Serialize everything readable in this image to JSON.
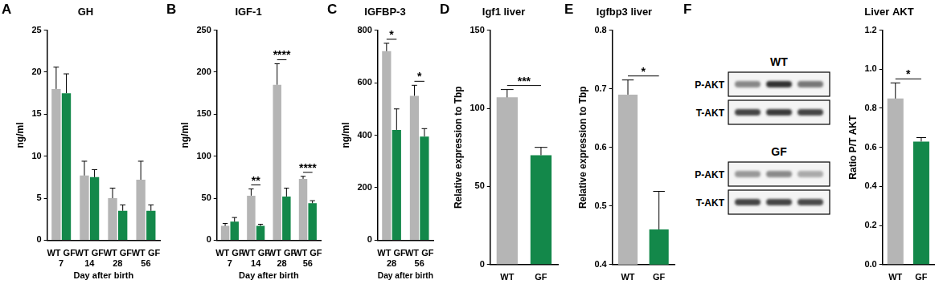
{
  "chart_data": [
    {
      "type": "bar",
      "panel": "A",
      "title": "GH",
      "ylabel": "ng/ml",
      "xlabel": "Day after birth",
      "categories": [
        "7",
        "14",
        "28",
        "56"
      ],
      "series": [
        {
          "name": "WT",
          "color": "#b5b5b5",
          "values": [
            18,
            7.7,
            5,
            7.2
          ],
          "errors": [
            2.6,
            1.7,
            1.2,
            2.2
          ]
        },
        {
          "name": "GF",
          "color": "#13884a",
          "values": [
            17.5,
            7.5,
            3.5,
            3.5
          ],
          "errors": [
            2.3,
            0.9,
            0.7,
            0.7
          ]
        }
      ],
      "ylim": [
        0,
        25
      ],
      "yticks": [
        0,
        5,
        10,
        15,
        20,
        25
      ],
      "grid": false,
      "annotations": []
    },
    {
      "type": "bar",
      "panel": "B",
      "title": "IGF-1",
      "ylabel": "ng/ml",
      "xlabel": "Day after birth",
      "categories": [
        "7",
        "14",
        "28",
        "56"
      ],
      "series": [
        {
          "name": "WT",
          "color": "#b5b5b5",
          "values": [
            17,
            53,
            185,
            73
          ],
          "errors": [
            3,
            8,
            25,
            3
          ]
        },
        {
          "name": "GF",
          "color": "#13884a",
          "values": [
            22,
            17,
            52,
            44
          ],
          "errors": [
            5,
            2,
            10,
            3
          ]
        }
      ],
      "ylim": [
        0,
        250
      ],
      "yticks": [
        0,
        50,
        100,
        150,
        200,
        250
      ],
      "grid": false,
      "annotations": [
        {
          "category": "14",
          "text": "**"
        },
        {
          "category": "28",
          "text": "****"
        },
        {
          "category": "56",
          "text": "****"
        }
      ]
    },
    {
      "type": "bar",
      "panel": "C",
      "title": "IGFBP-3",
      "ylabel": "ng/ml",
      "xlabel": "Day after birth",
      "categories": [
        "28",
        "56"
      ],
      "series": [
        {
          "name": "WT",
          "color": "#b5b5b5",
          "values": [
            720,
            550
          ],
          "errors": [
            30,
            40
          ]
        },
        {
          "name": "GF",
          "color": "#13884a",
          "values": [
            420,
            395
          ],
          "errors": [
            80,
            30
          ]
        }
      ],
      "ylim": [
        0,
        800
      ],
      "yticks": [
        0,
        200,
        400,
        600,
        800
      ],
      "grid": false,
      "annotations": [
        {
          "category": "28",
          "text": "*"
        },
        {
          "category": "56",
          "text": "*"
        }
      ]
    },
    {
      "type": "bar",
      "panel": "D",
      "title": "Igf1 liver",
      "ylabel": "Relative expression to Tbp",
      "categories": [
        "WT",
        "GF"
      ],
      "values": [
        107,
        70
      ],
      "errors": [
        5,
        5
      ],
      "colors": [
        "#b5b5b5",
        "#13884a"
      ],
      "ylim": [
        0,
        150
      ],
      "yticks": [
        0,
        50,
        100,
        150
      ],
      "grid": false,
      "annotations": [
        {
          "text": "***"
        }
      ]
    },
    {
      "type": "bar",
      "panel": "E",
      "title": "Igfbp3 liver",
      "ylabel": "Relative expression to Tbp",
      "categories": [
        "WT",
        "GF"
      ],
      "values": [
        0.69,
        0.46
      ],
      "errors": [
        0.025,
        0.065
      ],
      "colors": [
        "#b5b5b5",
        "#13884a"
      ],
      "ylim": [
        0.4,
        0.8
      ],
      "yticks": [
        0.4,
        0.5,
        0.6,
        0.7,
        0.8
      ],
      "grid": false,
      "annotations": [
        {
          "text": "*"
        }
      ]
    },
    {
      "type": "bar",
      "title": "Liver AKT",
      "ylabel": "Ratio P/T AKT",
      "categories": [
        "WT",
        "GF"
      ],
      "values": [
        0.85,
        0.63
      ],
      "errors": [
        0.08,
        0.02
      ],
      "colors": [
        "#b5b5b5",
        "#13884a"
      ],
      "ylim": [
        0,
        1.2
      ],
      "yticks": [
        {
          "value": 0,
          "label": "0.0"
        },
        {
          "value": 0.2,
          "label": "0.2"
        },
        {
          "value": 0.4,
          "label": "0.4"
        },
        {
          "value": 0.6,
          "label": "0.6"
        },
        {
          "value": 0.8,
          "label": "0.8"
        },
        {
          "value": 1,
          "label": "1.0"
        },
        {
          "value": 1.2,
          "label": "1.2"
        }
      ],
      "grid": false,
      "annotations": [
        {
          "text": "*"
        }
      ]
    }
  ],
  "blot": {
    "panel": "F",
    "groups": [
      {
        "label": "WT",
        "rows": [
          "P-AKT",
          "T-AKT"
        ]
      },
      {
        "label": "GF",
        "rows": [
          "P-AKT",
          "T-AKT"
        ]
      }
    ]
  }
}
